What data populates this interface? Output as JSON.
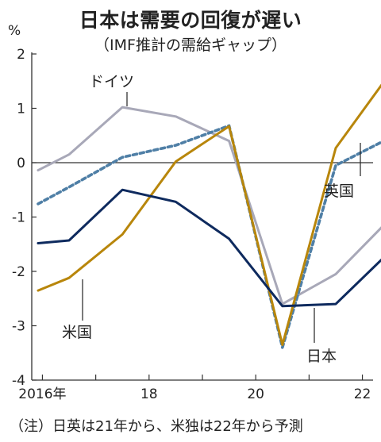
{
  "title": "日本は需要の回復が遅い",
  "subtitle": "（IMF推計の需給ギャップ）",
  "footnote": "（注）日英は21年から、米独は22年から予測",
  "chart_data": {
    "type": "line",
    "ylabel": "%",
    "ylim": [
      -4,
      2
    ],
    "xlim": [
      2015.8,
      2022.2
    ],
    "y_ticks": [
      "2",
      "1",
      "0",
      "-1",
      "-2",
      "-3",
      "-4"
    ],
    "x_ticks": [
      {
        "value": 2016,
        "label": "2016年"
      },
      {
        "value": 2018,
        "label": "18"
      },
      {
        "value": 2020,
        "label": "20"
      },
      {
        "value": 2022,
        "label": "22"
      }
    ],
    "x": [
      2015,
      2016,
      2017,
      2018,
      2019,
      2020,
      2021,
      2022
    ],
    "series": [
      {
        "name": "ドイツ",
        "color": "#a8a8b8",
        "dash": false,
        "values": [
          -0.35,
          0.15,
          1.02,
          0.85,
          0.4,
          -2.6,
          -2.05,
          -1.05
        ]
      },
      {
        "name": "英国",
        "color": "#4f7fa6",
        "dash": true,
        "values": [
          -0.98,
          -0.45,
          0.1,
          0.32,
          0.68,
          -3.4,
          -0.05,
          0.45
        ]
      },
      {
        "name": "米国",
        "color": "#b8860b",
        "dash": false,
        "values": [
          -2.52,
          -2.12,
          -1.32,
          0.02,
          0.67,
          -3.35,
          0.27,
          1.62
        ]
      },
      {
        "name": "日本",
        "color": "#0e2a5e",
        "dash": false,
        "values": [
          -1.52,
          -1.43,
          -0.5,
          -0.72,
          -1.4,
          -2.64,
          -2.6,
          -1.65
        ]
      }
    ]
  }
}
